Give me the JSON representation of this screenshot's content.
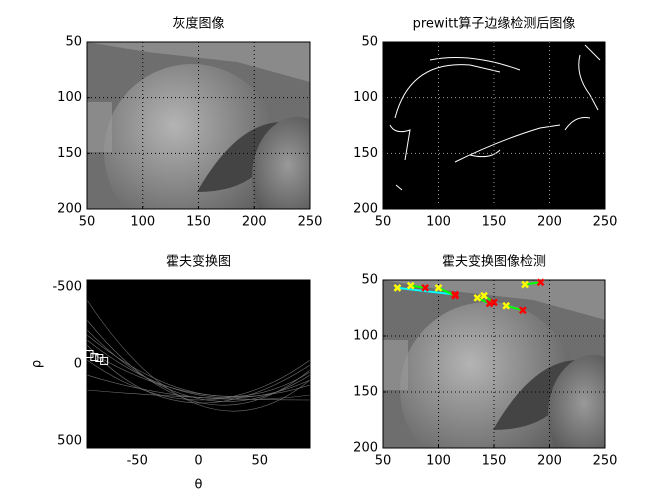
{
  "chart_data": [
    {
      "type": "image",
      "title": "灰度图像",
      "xlim": [
        50,
        250
      ],
      "ylim": [
        50,
        200
      ],
      "xticks": [
        50,
        100,
        150,
        200,
        250
      ],
      "yticks": [
        50,
        100,
        150,
        200
      ],
      "y_direction": "reverse",
      "grid": true,
      "grid_color": "#000000"
    },
    {
      "type": "image",
      "title": "prewitt算子边缘检测后图像",
      "xlim": [
        50,
        250
      ],
      "ylim": [
        50,
        200
      ],
      "xticks": [
        50,
        100,
        150,
        200,
        250
      ],
      "yticks": [
        50,
        100,
        150,
        200
      ],
      "y_direction": "reverse",
      "grid": true,
      "grid_color": "#9a9a9a"
    },
    {
      "type": "hough",
      "title": "霍夫变换图",
      "xlabel": "θ",
      "ylabel": "ρ",
      "xlim": [
        -91,
        91
      ],
      "ylim": [
        -545,
        545
      ],
      "xticks": [
        -50,
        0,
        50
      ],
      "yticks": [
        -500,
        0,
        500
      ],
      "y_direction": "reverse",
      "grid": false,
      "peaks": {
        "theta": [
          -89,
          -85,
          -81,
          -77
        ],
        "rho": [
          -65,
          -45,
          -39,
          -20
        ],
        "color": "#ffffff"
      }
    },
    {
      "type": "detection",
      "title": "霍夫变换图像检测",
      "xlim": [
        50,
        250
      ],
      "ylim": [
        50,
        200
      ],
      "xticks": [
        50,
        100,
        150,
        200,
        250
      ],
      "yticks": [
        50,
        100,
        150,
        200
      ],
      "y_direction": "reverse",
      "grid": true,
      "grid_color": "#000000",
      "start_color": "#ffff00",
      "end_color": "#ff0000",
      "segments": [
        {
          "x": [
            63,
            115
          ],
          "y": [
            57,
            63
          ],
          "color": "#00ffff"
        },
        {
          "x": [
            75,
            88
          ],
          "y": [
            55,
            57
          ],
          "color": "#00ff00"
        },
        {
          "x": [
            100,
            115
          ],
          "y": [
            57,
            64
          ],
          "color": "#00ff00"
        },
        {
          "x": [
            135,
            146
          ],
          "y": [
            66,
            71
          ],
          "color": "#00ff00"
        },
        {
          "x": [
            141,
            150
          ],
          "y": [
            64,
            70
          ],
          "color": "#00ff00"
        },
        {
          "x": [
            161,
            176
          ],
          "y": [
            73,
            77
          ],
          "color": "#00ff00"
        },
        {
          "x": [
            178,
            192
          ],
          "y": [
            54,
            52
          ],
          "color": "#00ff00"
        }
      ]
    }
  ]
}
